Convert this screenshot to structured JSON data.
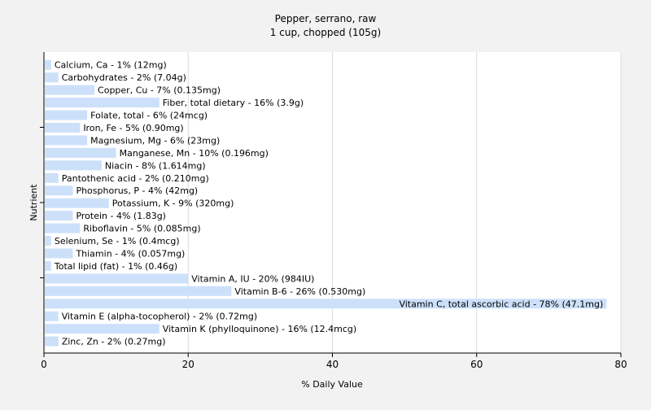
{
  "chart_data": {
    "type": "bar",
    "orientation": "horizontal",
    "title": "Pepper, serrano, raw",
    "subtitle": "1 cup, chopped (105g)",
    "xlabel": "% Daily Value",
    "ylabel": "Nutrient",
    "xlim": [
      0,
      80
    ],
    "xticks": [
      0,
      20,
      40,
      60,
      80
    ],
    "grid": true,
    "bar_color": "#cce0fa",
    "background_color": "#f2f2f2",
    "plot_background_color": "#ffffff",
    "categories": [
      "Calcium, Ca",
      "Carbohydrates",
      "Copper, Cu",
      "Fiber, total dietary",
      "Folate, total",
      "Iron, Fe",
      "Magnesium, Mg",
      "Manganese, Mn",
      "Niacin",
      "Pantothenic acid",
      "Phosphorus, P",
      "Potassium, K",
      "Protein",
      "Riboflavin",
      "Selenium, Se",
      "Thiamin",
      "Total lipid (fat)",
      "Vitamin A, IU",
      "Vitamin B-6",
      "Vitamin C, total ascorbic acid",
      "Vitamin E (alpha-tocopherol)",
      "Vitamin K (phylloquinone)",
      "Zinc, Zn"
    ],
    "values": [
      1,
      2,
      7,
      16,
      6,
      5,
      6,
      10,
      8,
      2,
      4,
      9,
      4,
      5,
      1,
      4,
      1,
      20,
      26,
      78,
      2,
      16,
      2
    ],
    "labels": [
      "Calcium, Ca - 1% (12mg)",
      "Carbohydrates - 2% (7.04g)",
      "Copper, Cu - 7% (0.135mg)",
      "Fiber, total dietary - 16% (3.9g)",
      "Folate, total - 6% (24mcg)",
      "Iron, Fe - 5% (0.90mg)",
      "Magnesium, Mg - 6% (23mg)",
      "Manganese, Mn - 10% (0.196mg)",
      "Niacin - 8% (1.614mg)",
      "Pantothenic acid - 2% (0.210mg)",
      "Phosphorus, P - 4% (42mg)",
      "Potassium, K - 9% (320mg)",
      "Protein - 4% (1.83g)",
      "Riboflavin - 5% (0.085mg)",
      "Selenium, Se - 1% (0.4mcg)",
      "Thiamin - 4% (0.057mg)",
      "Total lipid (fat) - 1% (0.46g)",
      "Vitamin A, IU - 20% (984IU)",
      "Vitamin B-6 - 26% (0.530mg)",
      "Vitamin C, total ascorbic acid - 78% (47.1mg)",
      "Vitamin E (alpha-tocopherol) - 2% (0.72mg)",
      "Vitamin K (phylloquinone) - 16% (12.4mcg)",
      "Zinc, Zn - 2% (0.27mg)"
    ]
  }
}
